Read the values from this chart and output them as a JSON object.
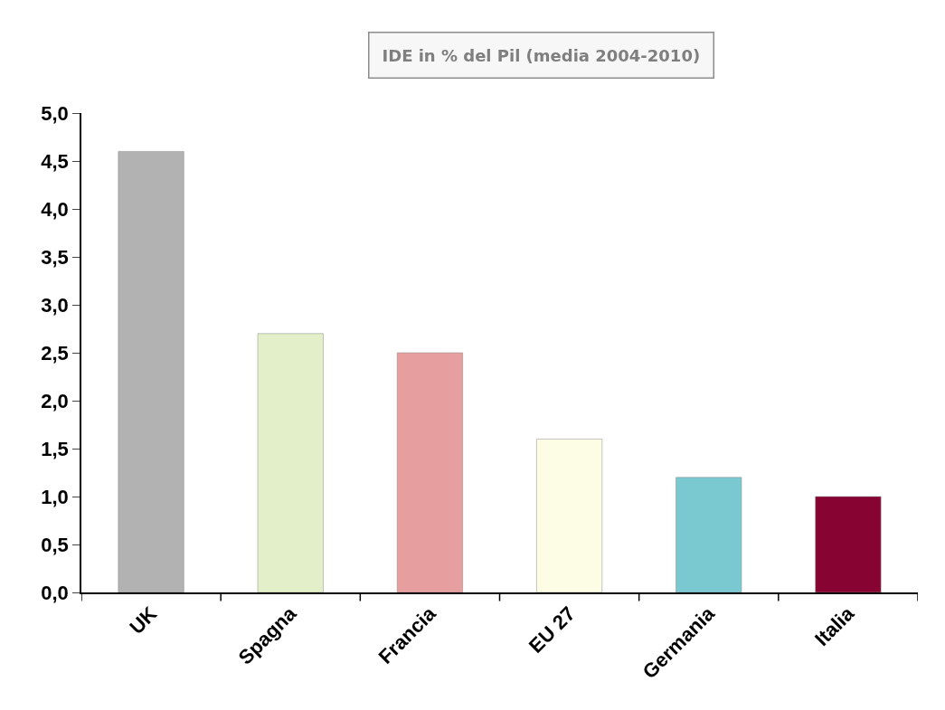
{
  "chart_data": {
    "type": "bar",
    "title": "IDE in % del Pil (media 2004-2010)",
    "categories": [
      "UK",
      "Spagna",
      "Francia",
      "EU 27",
      "Germania",
      "Italia"
    ],
    "values": [
      4.6,
      2.7,
      2.5,
      1.6,
      1.2,
      1.0
    ],
    "colors": [
      "#b2b2b2",
      "#e3efc8",
      "#e69f9e",
      "#fdfde6",
      "#7ac9d0",
      "#870432"
    ],
    "ylim": [
      0,
      5
    ],
    "yticks": [
      {
        "value": 0,
        "label": "0,0"
      },
      {
        "value": 0.5,
        "label": "0,5"
      },
      {
        "value": 1,
        "label": "1,0"
      },
      {
        "value": 1.5,
        "label": "1,5"
      },
      {
        "value": 2,
        "label": "2,0"
      },
      {
        "value": 2.5,
        "label": "2,5"
      },
      {
        "value": 3,
        "label": "3,0"
      },
      {
        "value": 3.5,
        "label": "3,5"
      },
      {
        "value": 4,
        "label": "4,0"
      },
      {
        "value": 4.5,
        "label": "4,5"
      },
      {
        "value": 5,
        "label": "5,0"
      }
    ],
    "tick_labels": true
  }
}
